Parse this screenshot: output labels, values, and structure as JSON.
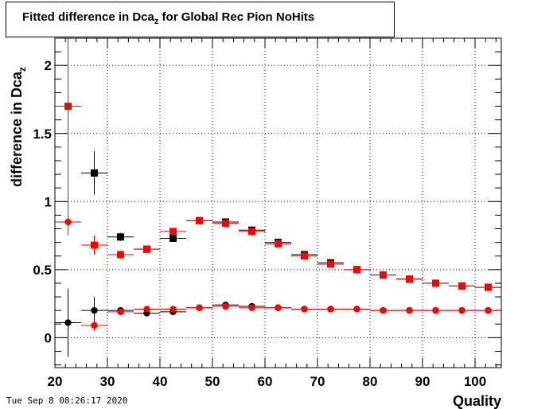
{
  "title": {
    "main": "Fitted difference in Dca",
    "sub": "z",
    "rest": " for Global Rec Pion NoHits"
  },
  "footer": {
    "date": "Tue Sep  8 08:26:17 2020"
  },
  "chart_data": {
    "type": "scatter",
    "title": "Fitted difference in Dca_z for Global Rec Pion NoHits",
    "xlabel": "Quality",
    "ylabel": "difference in Dca",
    "ylabel_sub": "z",
    "xlim": [
      20,
      105
    ],
    "ylim": [
      -0.22,
      2.2
    ],
    "x_ticks": [
      20,
      30,
      40,
      50,
      60,
      70,
      80,
      90,
      100
    ],
    "y_ticks": [
      0,
      0.5,
      1,
      1.5,
      2
    ],
    "y_tick_labels": [
      "0",
      "0.5",
      "1",
      "1.5",
      "2"
    ],
    "grid": true,
    "x_bin_half_width": 2.5,
    "series": [
      {
        "color": "#000000",
        "marker": "square",
        "points": [
          {
            "x": 27.5,
            "y": 1.21,
            "err": 0.16
          },
          {
            "x": 32.5,
            "y": 0.74,
            "err": 0.03
          },
          {
            "x": 37.5,
            "y": 0.65,
            "err": 0.01
          },
          {
            "x": 42.5,
            "y": 0.73,
            "err": 0.01
          },
          {
            "x": 47.5,
            "y": 0.86,
            "err": 0.01
          },
          {
            "x": 52.5,
            "y": 0.85,
            "err": 0.01
          },
          {
            "x": 57.5,
            "y": 0.79,
            "err": 0.01
          },
          {
            "x": 62.5,
            "y": 0.7,
            "err": 0.01
          },
          {
            "x": 67.5,
            "y": 0.61,
            "err": 0.01
          },
          {
            "x": 72.5,
            "y": 0.55,
            "err": 0.01
          },
          {
            "x": 77.5,
            "y": 0.5,
            "err": 0.01
          },
          {
            "x": 82.5,
            "y": 0.46,
            "err": 0.01
          },
          {
            "x": 87.5,
            "y": 0.43,
            "err": 0.01
          },
          {
            "x": 92.5,
            "y": 0.4,
            "err": 0.01
          },
          {
            "x": 97.5,
            "y": 0.38,
            "err": 0.01
          },
          {
            "x": 102.5,
            "y": 0.37,
            "err": 0.01
          }
        ]
      },
      {
        "color": "#000000",
        "marker": "circle",
        "points": [
          {
            "x": 22.5,
            "y": 0.11,
            "err": 0.25
          },
          {
            "x": 27.5,
            "y": 0.2,
            "err": 0.1
          },
          {
            "x": 32.5,
            "y": 0.2,
            "err": 0.02
          },
          {
            "x": 37.5,
            "y": 0.18,
            "err": 0.01
          },
          {
            "x": 42.5,
            "y": 0.19,
            "err": 0.01
          },
          {
            "x": 47.5,
            "y": 0.22,
            "err": 0.01
          },
          {
            "x": 52.5,
            "y": 0.24,
            "err": 0.01
          },
          {
            "x": 57.5,
            "y": 0.23,
            "err": 0.01
          },
          {
            "x": 62.5,
            "y": 0.22,
            "err": 0.01
          },
          {
            "x": 67.5,
            "y": 0.21,
            "err": 0.01
          },
          {
            "x": 72.5,
            "y": 0.21,
            "err": 0.01
          },
          {
            "x": 77.5,
            "y": 0.21,
            "err": 0.01
          },
          {
            "x": 82.5,
            "y": 0.2,
            "err": 0.01
          },
          {
            "x": 87.5,
            "y": 0.2,
            "err": 0.01
          },
          {
            "x": 92.5,
            "y": 0.2,
            "err": 0.01
          },
          {
            "x": 97.5,
            "y": 0.2,
            "err": 0.01
          },
          {
            "x": 102.5,
            "y": 0.2,
            "err": 0.01
          }
        ]
      },
      {
        "color": "#ff0000",
        "marker": "square",
        "points": [
          {
            "x": 22.5,
            "y": 1.7,
            "err": 0.95
          },
          {
            "x": 27.5,
            "y": 0.68,
            "err": 0.07
          },
          {
            "x": 32.5,
            "y": 0.61,
            "err": 0.03
          },
          {
            "x": 37.5,
            "y": 0.65,
            "err": 0.01
          },
          {
            "x": 42.5,
            "y": 0.78,
            "err": 0.01
          },
          {
            "x": 47.5,
            "y": 0.86,
            "err": 0.01
          },
          {
            "x": 52.5,
            "y": 0.84,
            "err": 0.01
          },
          {
            "x": 57.5,
            "y": 0.78,
            "err": 0.01
          },
          {
            "x": 62.5,
            "y": 0.69,
            "err": 0.01
          },
          {
            "x": 67.5,
            "y": 0.6,
            "err": 0.01
          },
          {
            "x": 72.5,
            "y": 0.54,
            "err": 0.01
          },
          {
            "x": 77.5,
            "y": 0.5,
            "err": 0.01
          },
          {
            "x": 82.5,
            "y": 0.46,
            "err": 0.01
          },
          {
            "x": 87.5,
            "y": 0.43,
            "err": 0.01
          },
          {
            "x": 92.5,
            "y": 0.4,
            "err": 0.01
          },
          {
            "x": 97.5,
            "y": 0.38,
            "err": 0.01
          },
          {
            "x": 102.5,
            "y": 0.37,
            "err": 0.01
          }
        ]
      },
      {
        "color": "#ff0000",
        "marker": "circle",
        "points": [
          {
            "x": 22.5,
            "y": 0.85,
            "err": 0.0
          },
          {
            "x": 27.5,
            "y": 0.09,
            "err": 0.04
          },
          {
            "x": 32.5,
            "y": 0.19,
            "err": 0.01
          },
          {
            "x": 37.5,
            "y": 0.21,
            "err": 0.01
          },
          {
            "x": 42.5,
            "y": 0.21,
            "err": 0.01
          },
          {
            "x": 47.5,
            "y": 0.22,
            "err": 0.01
          },
          {
            "x": 52.5,
            "y": 0.23,
            "err": 0.01
          },
          {
            "x": 57.5,
            "y": 0.22,
            "err": 0.01
          },
          {
            "x": 62.5,
            "y": 0.22,
            "err": 0.01
          },
          {
            "x": 67.5,
            "y": 0.21,
            "err": 0.01
          },
          {
            "x": 72.5,
            "y": 0.21,
            "err": 0.01
          },
          {
            "x": 77.5,
            "y": 0.21,
            "err": 0.01
          },
          {
            "x": 82.5,
            "y": 0.2,
            "err": 0.01
          },
          {
            "x": 87.5,
            "y": 0.2,
            "err": 0.01
          },
          {
            "x": 92.5,
            "y": 0.2,
            "err": 0.01
          },
          {
            "x": 97.5,
            "y": 0.2,
            "err": 0.01
          },
          {
            "x": 102.5,
            "y": 0.2,
            "err": 0.01
          }
        ]
      }
    ]
  }
}
